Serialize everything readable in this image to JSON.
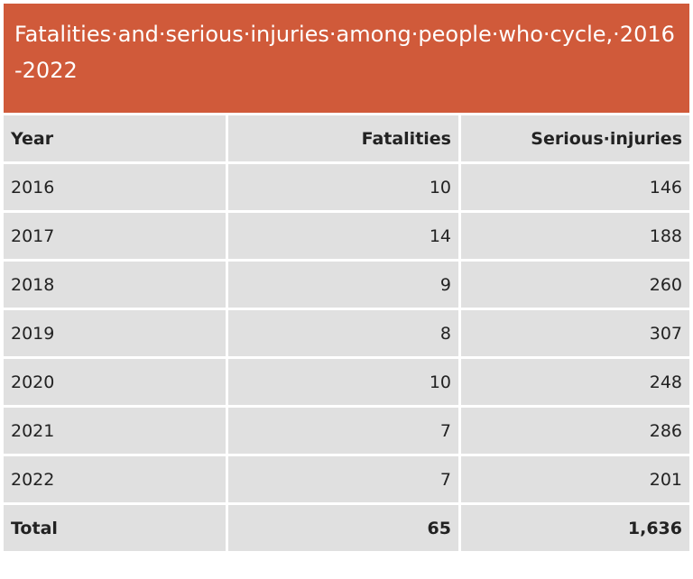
{
  "title": "Fatalities·and·serious·injuries·among·people·who·cycle,·2016-2022",
  "table": {
    "header": [
      "Year",
      "Fatalities",
      "Serious·injuries"
    ],
    "rows": [
      [
        "2016",
        "10",
        "146"
      ],
      [
        "2017",
        "14",
        "188"
      ],
      [
        "2018",
        "9",
        "260"
      ],
      [
        "2019",
        "8",
        "307"
      ],
      [
        "2020",
        "10",
        "248"
      ],
      [
        "2021",
        "7",
        "286"
      ],
      [
        "2022",
        "7",
        "201"
      ]
    ],
    "total": [
      "Total",
      "65",
      "1,636"
    ]
  }
}
